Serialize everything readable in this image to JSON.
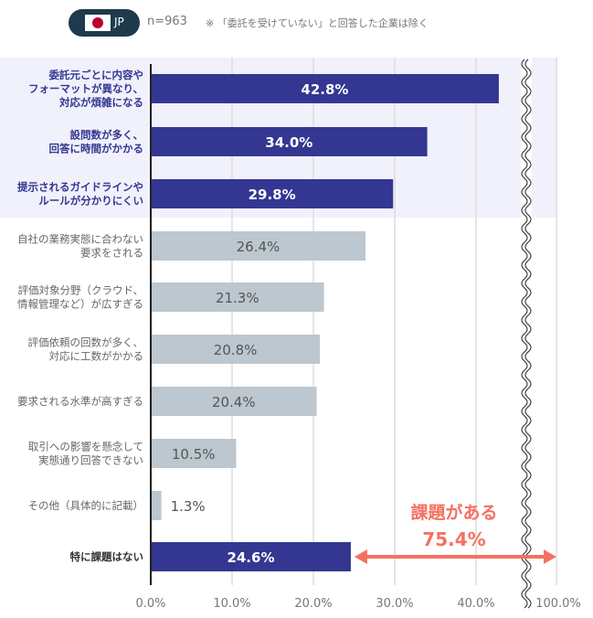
{
  "header": {
    "country": "JP",
    "n": "n=963",
    "note": "※ 「委託を受けていない」と回答した企業は除く"
  },
  "chart_data": {
    "type": "bar",
    "orientation": "horizontal",
    "categories": [
      [
        "委託元ごとに内容や",
        "フォーマットが異なり、",
        "対応が煩雑になる"
      ],
      [
        "設問数が多く、",
        "回答に時間がかかる"
      ],
      [
        "提示されるガイドラインや",
        "ルールが分かりにくい"
      ],
      [
        "自社の業務実態に合わない",
        "要求をされる"
      ],
      [
        "評価対象分野（クラウド、",
        "情報管理など）が広すぎる"
      ],
      [
        "評価依頼の回数が多く、",
        "対応に工数がかかる"
      ],
      [
        "要求される水準が高すぎる"
      ],
      [
        "取引への影響を懸念して",
        "実態通り回答できない"
      ],
      [
        "その他（具体的に記載）"
      ],
      [
        "特に課題はない"
      ]
    ],
    "values": [
      42.8,
      34.0,
      29.8,
      26.4,
      21.3,
      20.8,
      20.4,
      10.5,
      1.3,
      24.6
    ],
    "value_labels": [
      "42.8%",
      "34.0%",
      "29.8%",
      "26.4%",
      "21.3%",
      "20.8%",
      "20.4%",
      "10.5%",
      "1.3%",
      "24.6%"
    ],
    "highlighted": [
      true,
      true,
      true,
      false,
      false,
      false,
      false,
      false,
      false,
      true
    ],
    "x_ticks": [
      "0.0%",
      "10.0%",
      "20.0%",
      "30.0%",
      "40.0%",
      "100.0%"
    ],
    "xlim": [
      0,
      100
    ],
    "axis_break": "between 40% and 100%",
    "grid": true,
    "annotation": {
      "line1": "課題がある",
      "line2": "75.4%"
    },
    "colors": {
      "highlight": "#333791",
      "normal": "#bcc7cf",
      "band": "#f1f1fc",
      "annotation": "#f47162",
      "text_dim": "#666666"
    }
  }
}
